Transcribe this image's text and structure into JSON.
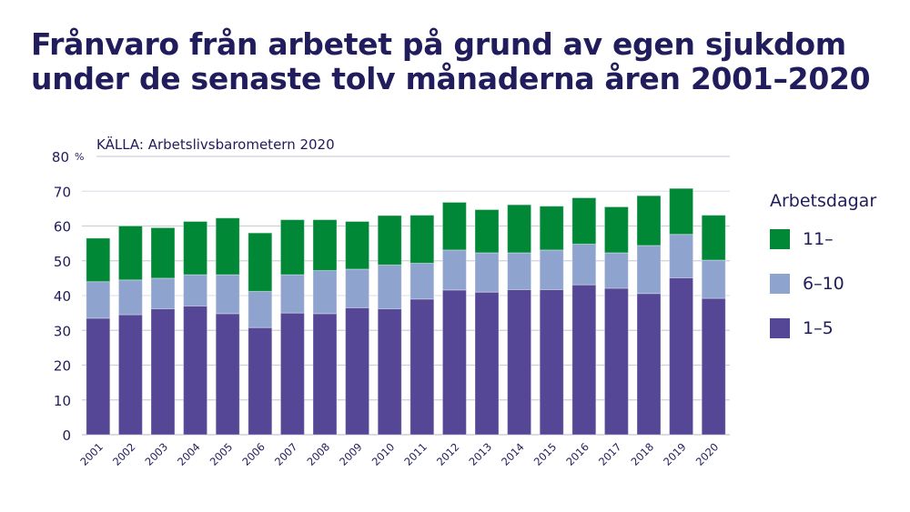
{
  "title": "Frånvaro från arbetet på grund av egen sjukdom under de senaste tolv månaderna åren 2001–2020",
  "source": "KÄLLA: Arbetslivsbarometern 2020",
  "chart_data": {
    "type": "bar",
    "stacked": true,
    "title": "Frånvaro från arbetet på grund av egen sjukdom under de senaste tolv månaderna åren 2001–2020",
    "ylabel": "",
    "y_unit_label": "%",
    "ylim": [
      0,
      80
    ],
    "yticks": [
      0,
      10,
      20,
      30,
      40,
      50,
      60,
      70,
      80
    ],
    "grid": true,
    "legend_title": "Arbetsdagar",
    "legend_position": "right",
    "categories": [
      "2001",
      "2002",
      "2003",
      "2004",
      "2005",
      "2006",
      "2007",
      "2008",
      "2009",
      "2010",
      "2011",
      "2012",
      "2013",
      "2014",
      "2015",
      "2016",
      "2017",
      "2018",
      "2019",
      "2020"
    ],
    "series": [
      {
        "name": "1–5",
        "color": "#554795",
        "values": [
          33.5,
          34.5,
          36.2,
          37.0,
          34.8,
          30.8,
          35.0,
          34.8,
          36.5,
          36.2,
          39.0,
          41.6,
          41.0,
          41.7,
          41.7,
          43.1,
          42.1,
          40.6,
          45.1,
          39.2
        ]
      },
      {
        "name": "6–10",
        "color": "#8fa3cf",
        "values": [
          10.5,
          10.0,
          8.8,
          9.0,
          11.2,
          10.4,
          11.0,
          12.4,
          11.1,
          12.6,
          10.3,
          11.5,
          11.3,
          10.6,
          11.4,
          11.7,
          10.2,
          13.8,
          12.5,
          11.0
        ]
      },
      {
        "name": "11–",
        "color": "#008837",
        "values": [
          12.5,
          15.5,
          14.5,
          15.3,
          16.3,
          16.8,
          15.8,
          14.6,
          13.7,
          14.2,
          13.8,
          13.7,
          12.4,
          13.8,
          12.6,
          13.3,
          13.2,
          14.3,
          13.2,
          12.9
        ]
      }
    ]
  }
}
